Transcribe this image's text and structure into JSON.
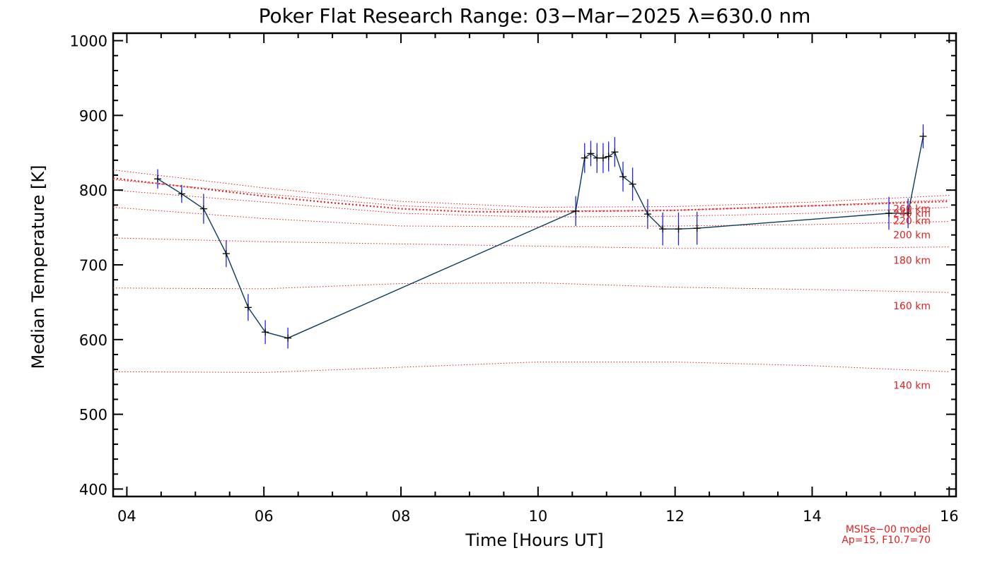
{
  "chart_data": {
    "type": "line",
    "title": "Poker Flat Research Range: 03−Mar−2025 λ=630.0 nm",
    "xlabel": "Time [Hours UT]",
    "ylabel": "Median Temperature [K]",
    "xlim": [
      3.8,
      16.1
    ],
    "ylim": [
      390,
      1010
    ],
    "x_ticks": [
      4,
      6,
      8,
      10,
      12,
      14,
      16
    ],
    "x_tick_labels": [
      "04",
      "06",
      "08",
      "10",
      "12",
      "14",
      "16"
    ],
    "y_ticks": [
      400,
      500,
      600,
      700,
      800,
      900,
      1000
    ],
    "y_tick_labels": [
      "400",
      "500",
      "600",
      "700",
      "800",
      "900",
      "1000"
    ],
    "series": [
      {
        "color": "#0a3a5a",
        "error_color": "#2020ee",
        "x": [
          4.45,
          4.8,
          5.12,
          5.45,
          5.77,
          6.02,
          6.35,
          10.55,
          10.68,
          10.77,
          10.86,
          10.95,
          11.03,
          11.12,
          11.24,
          11.38,
          11.6,
          11.82,
          12.05,
          12.32,
          15.12,
          15.4,
          15.62
        ],
        "y": [
          815,
          795,
          775,
          715,
          643,
          610,
          602,
          772,
          843,
          849,
          843,
          843,
          845,
          851,
          818,
          808,
          768,
          748,
          748,
          749,
          769,
          769,
          872
        ],
        "err": [
          13,
          12,
          20,
          18,
          18,
          16,
          14,
          20,
          20,
          17,
          20,
          20,
          20,
          20,
          20,
          22,
          20,
          22,
          22,
          22,
          22,
          20,
          16
        ]
      }
    ],
    "model_lines": [
      {
        "label": "140 km",
        "x": [
          3.8,
          6,
          8,
          10,
          12,
          14,
          16
        ],
        "y": [
          557,
          556,
          563,
          570,
          570,
          565,
          557
        ]
      },
      {
        "label": "160 km",
        "x": [
          3.8,
          6,
          8,
          10,
          12,
          14,
          16
        ],
        "y": [
          669,
          668,
          675,
          676,
          670,
          667,
          663
        ]
      },
      {
        "label": "180 km",
        "x": [
          3.8,
          6,
          8,
          10,
          12,
          14,
          16
        ],
        "y": [
          736,
          731,
          728,
          725,
          722,
          722,
          724
        ]
      },
      {
        "label": "200 km",
        "x": [
          3.8,
          6,
          8,
          10,
          12,
          14,
          16
        ],
        "y": [
          777,
          762,
          752,
          751,
          752,
          754,
          758
        ]
      },
      {
        "label": "220 km",
        "x": [
          3.8,
          6,
          8,
          10,
          12,
          14,
          16
        ],
        "y": [
          800,
          784,
          769,
          764,
          765,
          769,
          777
        ]
      },
      {
        "label": "240 km",
        "x": [
          3.8,
          6,
          8,
          10,
          12,
          14,
          16
        ],
        "y": [
          814,
          795,
          779,
          772,
          773,
          779,
          787
        ]
      },
      {
        "label": "260 km",
        "x": [
          3.8,
          6,
          8,
          10,
          12,
          14,
          16
        ],
        "y": [
          827,
          803,
          785,
          777,
          778,
          784,
          793
        ]
      }
    ],
    "model_lines_bold": {
      "x": [
        3.8,
        5,
        6,
        7,
        8,
        9,
        10,
        11,
        12,
        13,
        14,
        15,
        16
      ],
      "y": [
        816,
        803,
        792,
        783,
        775,
        771,
        771,
        772,
        773,
        776,
        779,
        782,
        785
      ]
    },
    "note_line1": "MSISe−00 model",
    "note_line2": "Ap=15, F10.7=70"
  }
}
